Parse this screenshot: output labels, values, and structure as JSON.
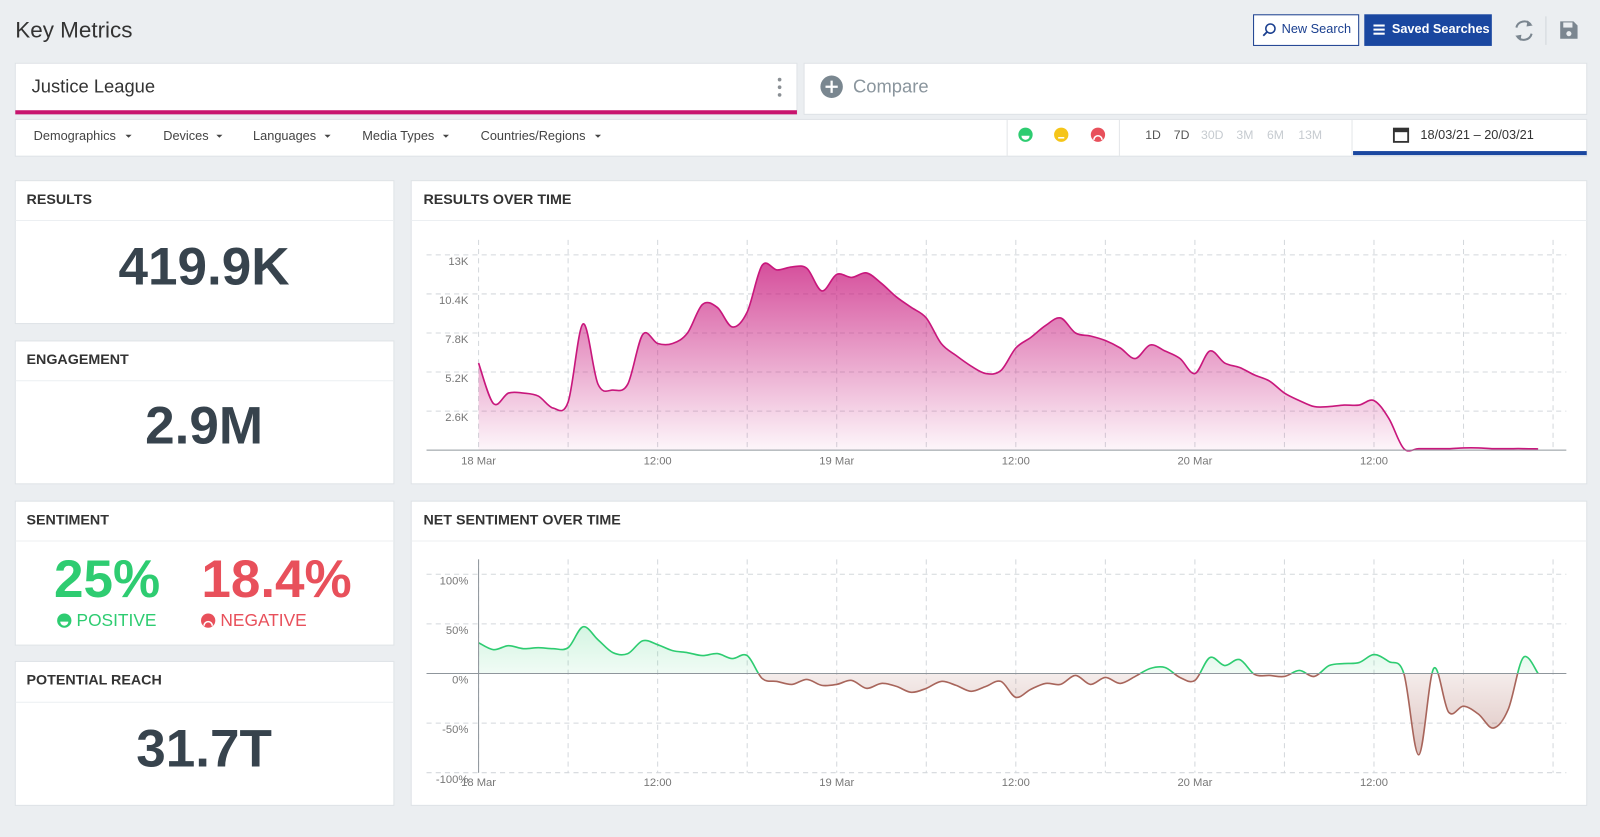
{
  "header": {
    "title": "Key Metrics",
    "buttons": [
      "New Search",
      "Saved Searches"
    ]
  },
  "search": {
    "term": "Justice League",
    "compare": "Compare"
  },
  "filters": [
    "Demographics",
    "Devices",
    "Languages",
    "Media Types",
    "Countries/Regions"
  ],
  "time_ranges": [
    "1D",
    "7D",
    "30D",
    "3M",
    "6M",
    "13M"
  ],
  "date_range": "18/03/21 – 20/03/21",
  "cards": [
    {
      "title": "RESULTS",
      "value": "419.9K"
    },
    {
      "title": "ENGAGEMENT",
      "value": "2.9M"
    },
    {
      "title": "SENTIMENT",
      "positive": {
        "value": "25%",
        "label": "POSITIVE"
      },
      "negative": {
        "value": "18.4%",
        "label": "NEGATIVE"
      }
    },
    {
      "title": "POTENTIAL REACH",
      "value": "31.7T"
    }
  ],
  "chart_data": [
    {
      "type": "area",
      "title": "RESULTS OVER TIME",
      "categories": [
        "18 Mar",
        null,
        null,
        null,
        null,
        null,
        null,
        null,
        null,
        null,
        null,
        null,
        "12:00",
        null,
        null,
        null,
        null,
        null,
        null,
        null,
        null,
        null,
        null,
        null,
        "19 Mar",
        null,
        null,
        null,
        null,
        null,
        null,
        null,
        null,
        null,
        null,
        null,
        "12:00",
        null,
        null,
        null,
        null,
        null,
        null,
        null,
        null,
        null,
        null,
        null,
        "20 Mar",
        null,
        null,
        null,
        null,
        null,
        null,
        null,
        null,
        null,
        null,
        null,
        "12:00",
        null,
        null,
        null,
        null,
        null,
        null,
        null,
        null,
        null,
        null,
        null
      ],
      "values": [
        5800,
        3100,
        3800,
        3800,
        3600,
        2800,
        3200,
        8400,
        4400,
        4000,
        4400,
        7700,
        7100,
        7100,
        7800,
        9700,
        9500,
        8200,
        9200,
        12300,
        12000,
        12200,
        12100,
        10600,
        11700,
        11500,
        11800,
        11100,
        10200,
        9500,
        8800,
        7100,
        6300,
        5600,
        5100,
        5300,
        6800,
        7500,
        8300,
        8800,
        7800,
        7600,
        7300,
        6800,
        6100,
        7000,
        6600,
        6100,
        5100,
        6600,
        5800,
        5500,
        5000,
        4600,
        3800,
        3300,
        2900,
        2900,
        3000,
        3000,
        3300,
        2100,
        100,
        100,
        100,
        100,
        150,
        150,
        100,
        100,
        100,
        80
      ],
      "color": "#c8177c",
      "ylim": [
        0,
        14000
      ],
      "yticks": [
        {
          "value": 2600,
          "label": "2.6K"
        },
        {
          "value": 5200,
          "label": "5.2K"
        },
        {
          "value": 7800,
          "label": "7.8K"
        },
        {
          "value": 10400,
          "label": "10.4K"
        },
        {
          "value": 13000,
          "label": "13K"
        }
      ],
      "grid": true
    },
    {
      "type": "area",
      "title": "NET SENTIMENT OVER TIME",
      "categories": [
        "18 Mar",
        null,
        null,
        null,
        null,
        null,
        null,
        null,
        null,
        null,
        null,
        null,
        "12:00",
        null,
        null,
        null,
        null,
        null,
        null,
        null,
        null,
        null,
        null,
        null,
        "19 Mar",
        null,
        null,
        null,
        null,
        null,
        null,
        null,
        null,
        null,
        null,
        null,
        "12:00",
        null,
        null,
        null,
        null,
        null,
        null,
        null,
        null,
        null,
        null,
        null,
        "20 Mar",
        null,
        null,
        null,
        null,
        null,
        null,
        null,
        null,
        null,
        null,
        null,
        "12:00",
        null,
        null,
        null,
        null,
        null,
        null,
        null,
        null,
        null,
        null,
        null
      ],
      "values": [
        31,
        24,
        28,
        25,
        26,
        25,
        26,
        47,
        34,
        21,
        20,
        33,
        29,
        23,
        21,
        18,
        20,
        15,
        18,
        -5,
        -8,
        -11,
        -6,
        -12,
        -11,
        -7,
        -15,
        -10,
        -13,
        -19,
        -15,
        -8,
        -12,
        -18,
        -13,
        -8,
        -24,
        -16,
        -10,
        -11,
        -2,
        -11,
        -4,
        -10,
        -3,
        5,
        6,
        -4,
        -7,
        16,
        8,
        14,
        -1,
        -2,
        -3,
        3,
        -3,
        8,
        10,
        11,
        19,
        12,
        0,
        -82,
        5,
        -39,
        -33,
        -41,
        -55,
        -36,
        16,
        0
      ],
      "color": "#2ecc71",
      "negative_color": "#a8655b",
      "ylim": [
        -100,
        115
      ],
      "yticks": [
        {
          "value": -100,
          "label": "-100%"
        },
        {
          "value": -50,
          "label": "-50%"
        },
        {
          "value": 0,
          "label": "0%"
        },
        {
          "value": 50,
          "label": "50%"
        },
        {
          "value": 100,
          "label": "100%"
        }
      ],
      "grid": true
    }
  ]
}
